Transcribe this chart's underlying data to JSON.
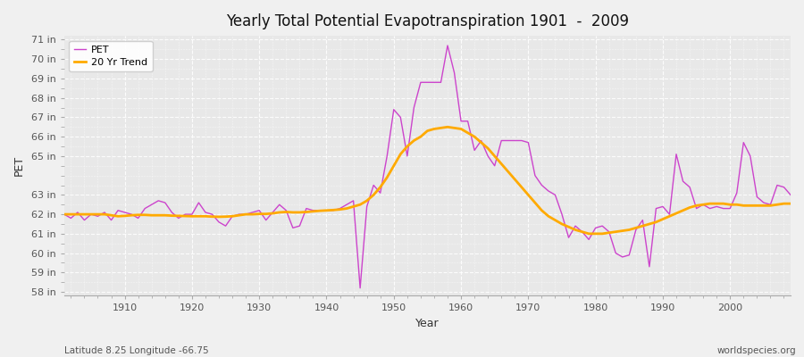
{
  "title": "Yearly Total Potential Evapotranspiration 1901  -  2009",
  "xlabel": "Year",
  "ylabel": "PET",
  "bottom_left_label": "Latitude 8.25 Longitude -66.75",
  "bottom_right_label": "worldspecies.org",
  "pet_color": "#cc44cc",
  "trend_color": "#ffaa00",
  "background_color": "#f0f0f0",
  "plot_bg_color": "#e8e8e8",
  "grid_color": "#d0d0d0",
  "ylim": [
    57.8,
    71.2
  ],
  "yticks": [
    58,
    59,
    60,
    61,
    62,
    63,
    65,
    66,
    67,
    68,
    69,
    70,
    71
  ],
  "xlim_start": 1901,
  "xlim_end": 2009,
  "xticks": [
    1910,
    1920,
    1930,
    1940,
    1950,
    1960,
    1970,
    1980,
    1990,
    2000
  ],
  "years": [
    1901,
    1902,
    1903,
    1904,
    1905,
    1906,
    1907,
    1908,
    1909,
    1910,
    1911,
    1912,
    1913,
    1914,
    1915,
    1916,
    1917,
    1918,
    1919,
    1920,
    1921,
    1922,
    1923,
    1924,
    1925,
    1926,
    1927,
    1928,
    1929,
    1930,
    1931,
    1932,
    1933,
    1934,
    1935,
    1936,
    1937,
    1938,
    1939,
    1940,
    1941,
    1942,
    1943,
    1944,
    1945,
    1946,
    1947,
    1948,
    1949,
    1950,
    1951,
    1952,
    1953,
    1954,
    1955,
    1956,
    1957,
    1958,
    1959,
    1960,
    1961,
    1962,
    1963,
    1964,
    1965,
    1966,
    1967,
    1968,
    1969,
    1970,
    1971,
    1972,
    1973,
    1974,
    1975,
    1976,
    1977,
    1978,
    1979,
    1980,
    1981,
    1982,
    1983,
    1984,
    1985,
    1986,
    1987,
    1988,
    1989,
    1990,
    1991,
    1992,
    1993,
    1994,
    1995,
    1996,
    1997,
    1998,
    1999,
    2000,
    2001,
    2002,
    2003,
    2004,
    2005,
    2006,
    2007,
    2008,
    2009
  ],
  "pet_values": [
    62.0,
    61.8,
    62.1,
    61.7,
    62.0,
    61.9,
    62.1,
    61.7,
    62.2,
    62.1,
    62.0,
    61.8,
    62.3,
    62.5,
    62.7,
    62.6,
    62.1,
    61.8,
    62.0,
    62.0,
    62.6,
    62.1,
    62.0,
    61.6,
    61.4,
    61.9,
    62.0,
    62.0,
    62.1,
    62.2,
    61.7,
    62.1,
    62.5,
    62.2,
    61.3,
    61.4,
    62.3,
    62.2,
    62.2,
    62.2,
    62.2,
    62.3,
    62.5,
    62.7,
    58.2,
    62.4,
    63.5,
    63.1,
    65.0,
    67.4,
    67.0,
    65.0,
    67.5,
    68.8,
    68.8,
    68.8,
    68.8,
    70.7,
    69.3,
    66.8,
    66.8,
    65.3,
    65.8,
    65.0,
    64.5,
    65.8,
    65.8,
    65.8,
    65.8,
    65.7,
    64.0,
    63.5,
    63.2,
    63.0,
    62.0,
    60.8,
    61.4,
    61.1,
    60.7,
    61.3,
    61.4,
    61.1,
    60.0,
    59.8,
    59.9,
    61.2,
    61.7,
    59.3,
    62.3,
    62.4,
    62.0,
    65.1,
    63.7,
    63.4,
    62.3,
    62.5,
    62.3,
    62.4,
    62.3,
    62.3,
    63.1,
    65.7,
    65.0,
    62.9,
    62.6,
    62.5,
    63.5,
    63.4,
    63.0
  ],
  "trend_values": [
    62.0,
    62.0,
    62.0,
    62.0,
    62.0,
    62.0,
    62.0,
    61.95,
    61.9,
    61.92,
    61.95,
    61.97,
    61.97,
    61.95,
    61.95,
    61.95,
    61.93,
    61.92,
    61.91,
    61.9,
    61.9,
    61.9,
    61.88,
    61.87,
    61.88,
    61.9,
    61.95,
    62.0,
    62.0,
    62.02,
    62.02,
    62.05,
    62.1,
    62.12,
    62.1,
    62.1,
    62.12,
    62.15,
    62.18,
    62.2,
    62.22,
    62.25,
    62.3,
    62.4,
    62.5,
    62.7,
    63.0,
    63.4,
    63.9,
    64.5,
    65.1,
    65.5,
    65.8,
    66.0,
    66.3,
    66.4,
    66.45,
    66.5,
    66.45,
    66.4,
    66.2,
    66.0,
    65.7,
    65.4,
    65.0,
    64.6,
    64.2,
    63.8,
    63.4,
    63.0,
    62.6,
    62.2,
    61.9,
    61.7,
    61.5,
    61.35,
    61.2,
    61.1,
    61.0,
    61.0,
    61.0,
    61.05,
    61.1,
    61.15,
    61.2,
    61.3,
    61.4,
    61.5,
    61.6,
    61.75,
    61.9,
    62.05,
    62.2,
    62.35,
    62.45,
    62.5,
    62.55,
    62.55,
    62.55,
    62.5,
    62.5,
    62.45,
    62.45,
    62.45,
    62.45,
    62.45,
    62.5,
    62.55,
    62.55
  ]
}
